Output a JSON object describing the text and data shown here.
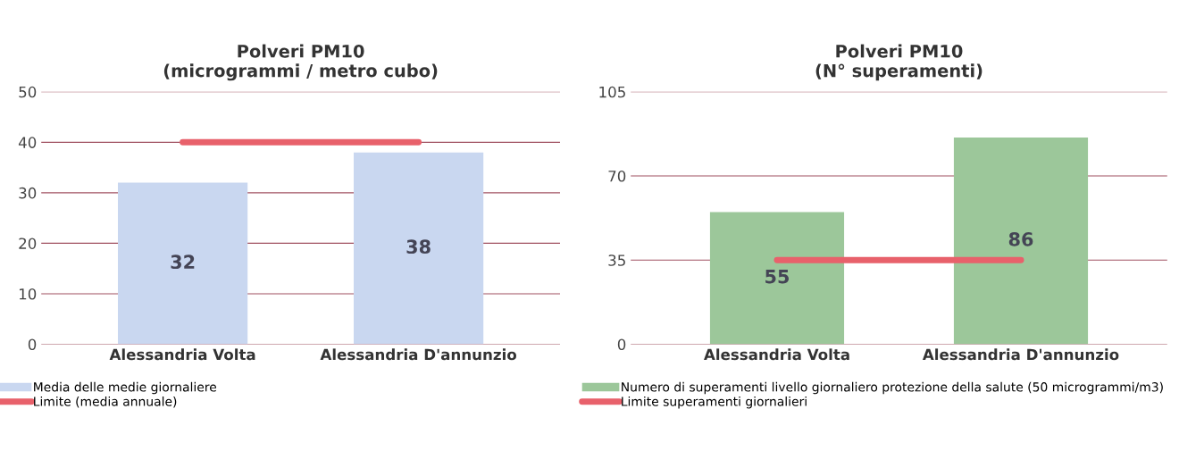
{
  "chart_data": [
    {
      "type": "bar",
      "title": "Polveri PM10\n(microgrammi / metro cubo)",
      "categories": [
        "Alessandria Volta",
        "Alessandria D'annunzio"
      ],
      "series": [
        {
          "name": "Media delle medie giornaliere",
          "color": "#c9d7f0",
          "values": [
            32,
            38
          ],
          "value_labels": [
            "32",
            "38"
          ]
        },
        {
          "name": "Limite (media annuale)",
          "type": "line",
          "color": "#e8616b",
          "values": [
            40,
            40
          ]
        }
      ],
      "ylim": [
        0,
        50
      ],
      "yticks": [
        0,
        10,
        20,
        30,
        40,
        50
      ],
      "grid": "y",
      "legend": "bottom"
    },
    {
      "type": "bar",
      "title": "Polveri PM10\n(N° superamenti)",
      "categories": [
        "Alessandria Volta",
        "Alessandria D'annunzio"
      ],
      "series": [
        {
          "name": "Numero di superamenti livello giornaliero protezione della salute (50 microgrammi/m3)",
          "color": "#9cc79a",
          "values": [
            55,
            86
          ],
          "value_labels": [
            "55",
            "86"
          ]
        },
        {
          "name": "Limite superamenti giornalieri",
          "type": "line",
          "color": "#e8616b",
          "values": [
            35,
            35
          ]
        }
      ],
      "ylim": [
        0,
        105
      ],
      "yticks": [
        0,
        35,
        70,
        105
      ],
      "grid": "y",
      "legend": "bottom"
    }
  ]
}
